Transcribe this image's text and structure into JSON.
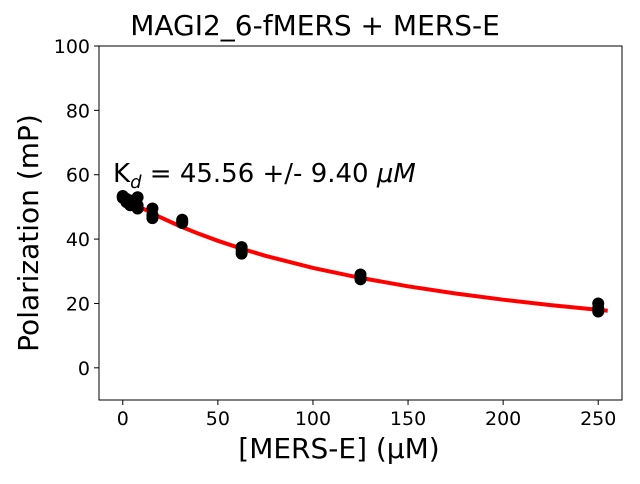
{
  "chart_data": {
    "type": "scatter",
    "title": "MAGI2_6-fMERS + MERS-E",
    "xlabel": "[MERS-E] (µM)",
    "ylabel": "Polarization (mP)",
    "xlim": [
      -12.5,
      262.5
    ],
    "ylim": [
      -10,
      100
    ],
    "xticks": [
      0,
      50,
      100,
      150,
      200,
      250
    ],
    "yticks": [
      0,
      20,
      40,
      60,
      80,
      100
    ],
    "grid": false,
    "annotation": {
      "prefix": "K",
      "subscript": "d",
      "text": " = 45.56 +/- 9.40 ",
      "unit": "μM"
    },
    "points": {
      "name": "data",
      "color": "#000000",
      "x": [
        0,
        0,
        0,
        1.95,
        1.95,
        3.9,
        3.9,
        7.8,
        7.8,
        7.8,
        15.6,
        15.6,
        15.6,
        31.25,
        31.25,
        31.25,
        62.5,
        62.5,
        62.5,
        125,
        125,
        125,
        250,
        250,
        250
      ],
      "y": [
        53.4,
        53.1,
        52.8,
        52.5,
        51.5,
        52,
        50.5,
        53,
        50.5,
        49.5,
        49.5,
        47.5,
        46.5,
        46,
        45.5,
        45,
        37.5,
        36.5,
        35.5,
        29,
        28,
        27.5,
        20,
        18.5,
        17.5
      ]
    },
    "fit": {
      "name": "fit",
      "color": "#ff0000",
      "x": [
        0,
        10,
        20,
        30,
        40,
        50,
        62.5,
        75,
        100,
        125,
        150,
        175,
        200,
        225,
        255
      ],
      "y": [
        53,
        49.67,
        46.7,
        44.05,
        41.64,
        39.46,
        37.01,
        34.82,
        31.05,
        27.94,
        25.32,
        23.09,
        21.16,
        19.48,
        17.74
      ]
    }
  }
}
